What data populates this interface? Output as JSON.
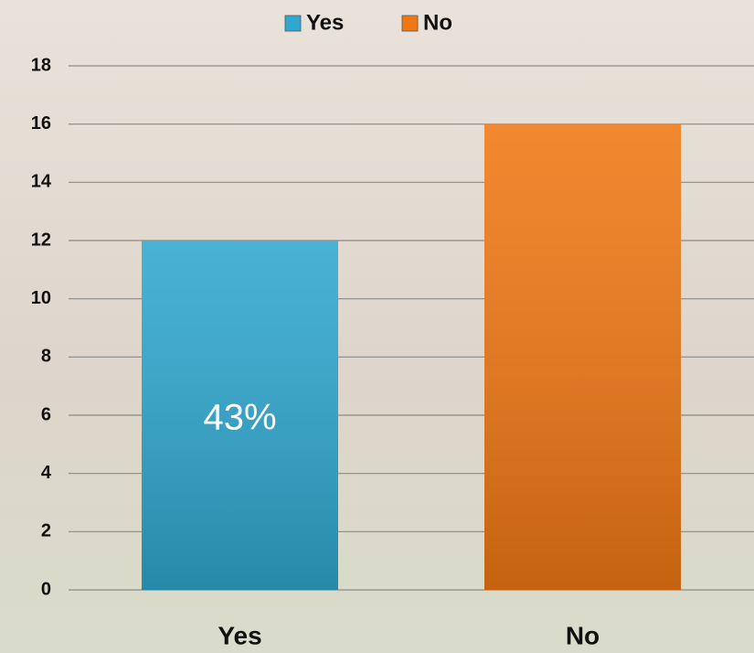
{
  "chart_data": {
    "type": "bar",
    "categories": [
      "Yes",
      "No"
    ],
    "series": [
      {
        "name": "Yes",
        "color": "#2fa7cf",
        "values": [
          12,
          null
        ]
      },
      {
        "name": "No",
        "color": "#f07814",
        "values": [
          null,
          16
        ]
      }
    ],
    "annotation": "43%",
    "ylim": [
      0,
      18
    ],
    "yticks": [
      0,
      2,
      4,
      6,
      8,
      10,
      12,
      14,
      16,
      18
    ],
    "grid": true,
    "legend": "top"
  }
}
